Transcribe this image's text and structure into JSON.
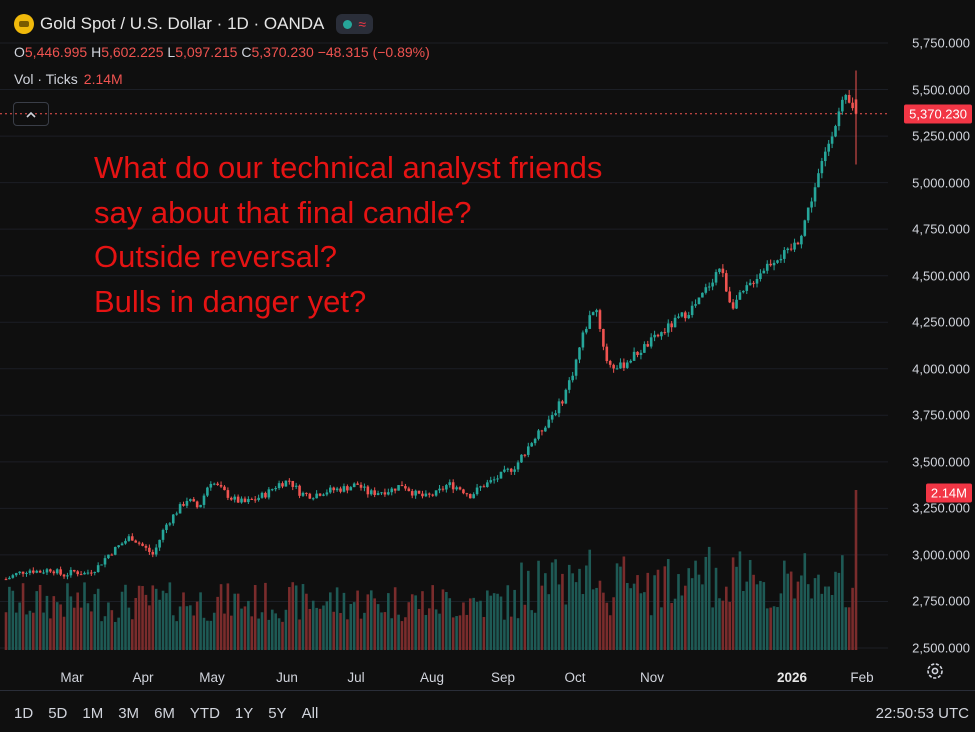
{
  "header": {
    "symbol_title": "Gold Spot / U.S. Dollar · 1D · OANDA",
    "ohlc": {
      "o_label": "O",
      "o": "5,446.995",
      "h_label": "H",
      "h": "5,602.225",
      "l_label": "L",
      "l": "5,097.215",
      "c_label": "C",
      "c": "5,370.230",
      "change": "−48.315 (−0.89%)"
    },
    "volume_label": "Vol · Ticks",
    "volume_value": "2.14M",
    "collapse_icon": "chevron-up-icon"
  },
  "annotation": [
    "What do our technical analyst friends",
    "say about that final candle?",
    "Outside reversal?",
    "Bulls in danger yet?"
  ],
  "price_tag": "5,370.230",
  "volume_tag": "2.14M",
  "range_buttons": [
    "1D",
    "5D",
    "1M",
    "3M",
    "6M",
    "YTD",
    "1Y",
    "5Y",
    "All"
  ],
  "clock": "22:50:53 UTC",
  "colors": {
    "up": "#26a69a",
    "down": "#ef5350",
    "annotation": "#e51313",
    "background": "#0f0f0f"
  },
  "chart_data": {
    "type": "candlestick",
    "symbol": "Gold Spot / U.S. Dollar",
    "interval": "1D",
    "yaxis": {
      "ticks": [
        "5,750.000",
        "5,500.000",
        "5,250.000",
        "5,000.000",
        "4,750.000",
        "4,500.000",
        "4,250.000",
        "4,000.000",
        "3,750.000",
        "3,500.000",
        "3,250.000",
        "3,000.000",
        "2,750.000",
        "2,500.000"
      ],
      "ylim": [
        2500,
        5750
      ]
    },
    "xaxis": {
      "ticks": [
        "Mar",
        "Apr",
        "May",
        "Jun",
        "Jul",
        "Aug",
        "Sep",
        "Oct",
        "Nov",
        "2026",
        "Feb"
      ]
    },
    "last_price": 5370.23,
    "series": [
      {
        "name": "Price",
        "close": [
          2870,
          2900,
          2920,
          2910,
          2925,
          2890,
          2910,
          2900,
          2930,
          3000,
          3050,
          3100,
          3050,
          3000,
          3150,
          3230,
          3300,
          3250,
          3400,
          3350,
          3300,
          3280,
          3300,
          3330,
          3380,
          3400,
          3330,
          3320,
          3340,
          3350,
          3360,
          3380,
          3330,
          3340,
          3350,
          3380,
          3330,
          3310,
          3330,
          3380,
          3360,
          3320,
          3370,
          3400,
          3440,
          3480,
          3580,
          3650,
          3740,
          3820,
          3980,
          4200,
          4350,
          4040,
          4000,
          4050,
          4100,
          4150,
          4200,
          4250,
          4300,
          4350,
          4450,
          4550,
          4340,
          4400,
          4480,
          4550,
          4600,
          4620,
          4700,
          4900,
          5100,
          5300,
          5447,
          5370
        ]
      },
      {
        "name": "Vol · Ticks",
        "last": "2.14M"
      }
    ]
  }
}
